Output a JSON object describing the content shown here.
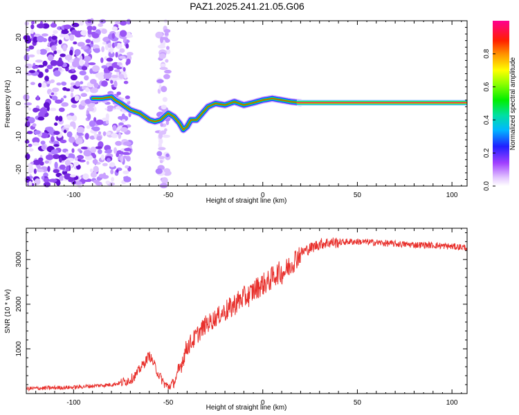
{
  "title": "PAZ1.2025.241.21.05.G06",
  "chart_data": [
    {
      "type": "heatmap",
      "name": "spectrogram",
      "xlabel": "Height of straight line (km)",
      "ylabel": "Frequency (Hz)",
      "xlim": [
        -125,
        108
      ],
      "ylim": [
        -25,
        25
      ],
      "xticks": [
        -100,
        -50,
        0,
        50,
        100
      ],
      "yticks": [
        20,
        10,
        0,
        -10,
        -20
      ],
      "colorbar": {
        "label": "Normalized spectral amplitude",
        "range": [
          0,
          1
        ],
        "ticks": [
          0.0,
          0.2,
          0.4,
          0.6,
          0.8
        ],
        "tick_labels": [
          "0.0",
          "0.2",
          "0.4",
          "0.6",
          "0.8"
        ]
      },
      "ridge": {
        "height_km": [
          -90,
          -85,
          -80,
          -78,
          -75,
          -70,
          -65,
          -60,
          -57,
          -54,
          -50,
          -47,
          -44,
          -42,
          -40,
          -38,
          -35,
          -32,
          -29,
          -25,
          -20,
          -15,
          -10,
          -5,
          0,
          5,
          10,
          15,
          20,
          30,
          50,
          108
        ],
        "frequency_hz": [
          1.5,
          1.5,
          2.0,
          1.0,
          0,
          -2,
          -3,
          -5,
          -5.5,
          -5,
          -3,
          -4,
          -6,
          -8,
          -7,
          -5,
          -5,
          -3,
          -1,
          0,
          -0.5,
          0.5,
          -0.5,
          0.2,
          1.0,
          1.5,
          1.0,
          0.5,
          0.2,
          0.2,
          0.2,
          0.2
        ]
      }
    },
    {
      "type": "line",
      "name": "snr",
      "xlabel": "Height of straight line (km)",
      "ylabel": "SNR (10 * v/v)",
      "xlim": [
        -125,
        108
      ],
      "ylim": [
        0,
        3700
      ],
      "xticks": [
        -100,
        -50,
        0,
        50,
        100
      ],
      "yticks": [
        1000,
        2000,
        3000
      ],
      "series": [
        {
          "name": "SNR",
          "x": [
            -125,
            -110,
            -100,
            -90,
            -80,
            -75,
            -70,
            -67,
            -65,
            -62,
            -60,
            -58,
            -55,
            -52,
            -50,
            -47,
            -45,
            -42,
            -40,
            -37,
            -35,
            -32,
            -30,
            -27,
            -25,
            -22,
            -20,
            -17,
            -15,
            -12,
            -10,
            -7,
            -5,
            -2,
            0,
            3,
            5,
            8,
            10,
            12,
            15,
            18,
            20,
            25,
            30,
            35,
            40,
            45,
            50,
            60,
            70,
            80,
            90,
            100,
            108
          ],
          "y": [
            110,
            130,
            140,
            170,
            200,
            240,
            310,
            420,
            550,
            720,
            860,
            700,
            420,
            220,
            150,
            240,
            420,
            800,
            1050,
            1180,
            1300,
            1450,
            1550,
            1620,
            1700,
            1780,
            1850,
            1900,
            2000,
            2100,
            2150,
            2200,
            2300,
            2400,
            2450,
            2500,
            2600,
            2700,
            2700,
            2750,
            2900,
            3050,
            3150,
            3250,
            3350,
            3380,
            3380,
            3400,
            3400,
            3380,
            3350,
            3330,
            3320,
            3290,
            3270
          ]
        }
      ]
    }
  ],
  "colors": {
    "snr_line": "#e8302c",
    "scatter": "#8a2be2"
  }
}
